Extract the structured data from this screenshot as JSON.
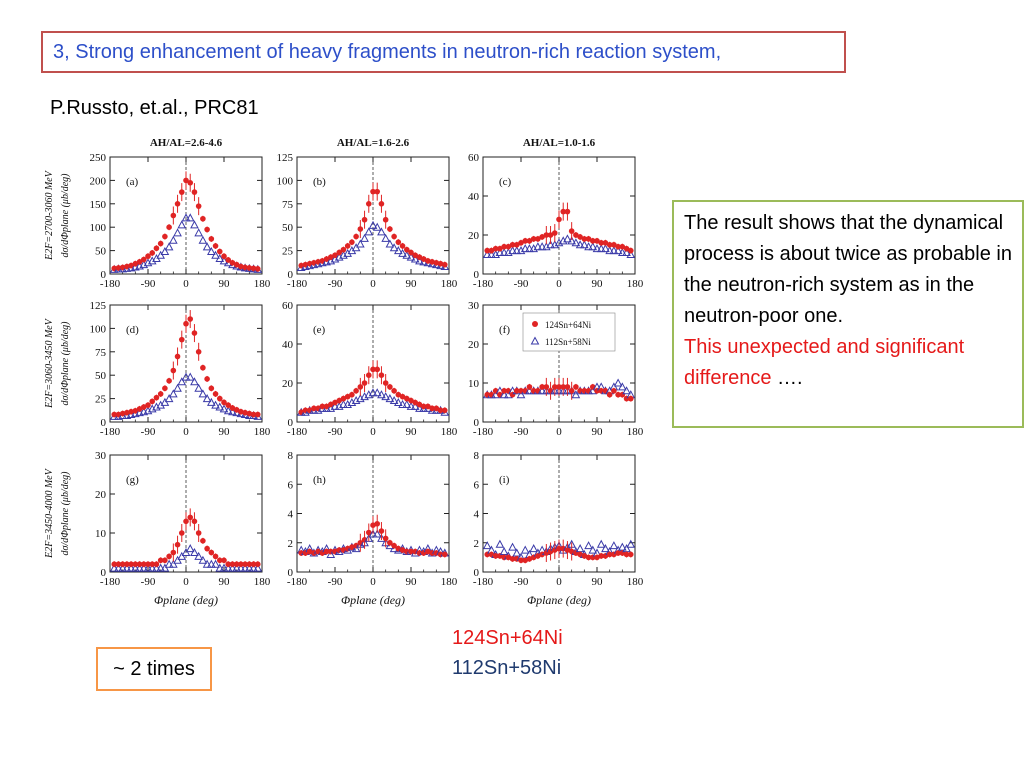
{
  "slide": {
    "title": "3, Strong enhancement of heavy fragments in neutron-rich reaction system,",
    "citation": "P.Russto, et.al., PRC81",
    "note_black": "The result shows that the dynamical process is about twice as probable in the neutron-rich system as in the neutron-poor one.",
    "note_red": "This unexpected and significant difference",
    "note_dots": " ….",
    "legend_red": "124Sn+64Ni",
    "legend_blue": "112Sn+58Ni",
    "times_label": "~ 2 times"
  },
  "colors": {
    "red_series": "#e02424",
    "blue_series": "#3a3aa8",
    "title_blue": "#2d4fc9",
    "note_red": "#e51919"
  },
  "chart_data": {
    "type": "scatter",
    "column_titles": [
      "AH/AL=2.6-4.6",
      "AH/AL=1.6-2.6",
      "AH/AL=1.0-1.6"
    ],
    "row_labels": [
      "E2F=2700-3060 MeV",
      "E2F=3060-3450 MeV",
      "E2F=3450-4000 MeV"
    ],
    "ylabel": "dσ/dΦplane (μb/deg)",
    "xlabel": "Φplane (deg)",
    "x_ticks": [
      "-180",
      "-90",
      "0",
      "90",
      "180"
    ],
    "xlim": [
      -180,
      180
    ],
    "legend": {
      "panel": "f",
      "entries": [
        "124Sn+64Ni",
        "112Sn+58Ni"
      ]
    },
    "x": [
      -170,
      -160,
      -150,
      -140,
      -130,
      -120,
      -110,
      -100,
      -90,
      -80,
      -70,
      -60,
      -50,
      -40,
      -30,
      -20,
      -10,
      0,
      10,
      20,
      30,
      40,
      50,
      60,
      70,
      80,
      90,
      100,
      110,
      120,
      130,
      140,
      150,
      160,
      170
    ],
    "panels": [
      {
        "label": "(a)",
        "ylim": [
          0,
          250
        ],
        "yticks": [
          "0",
          "50",
          "100",
          "150",
          "200",
          "250"
        ],
        "red": [
          12,
          13,
          14,
          16,
          18,
          22,
          26,
          31,
          38,
          45,
          55,
          65,
          80,
          100,
          125,
          150,
          175,
          200,
          195,
          175,
          145,
          118,
          95,
          75,
          60,
          48,
          38,
          30,
          24,
          20,
          16,
          14,
          13,
          12,
          11
        ],
        "blue": [
          10,
          11,
          11,
          12,
          13,
          15,
          17,
          20,
          24,
          28,
          33,
          40,
          48,
          58,
          72,
          88,
          105,
          120,
          120,
          105,
          88,
          72,
          58,
          48,
          40,
          33,
          28,
          24,
          20,
          17,
          15,
          13,
          12,
          11,
          10
        ]
      },
      {
        "label": "(b)",
        "ylim": [
          0,
          125
        ],
        "yticks": [
          "0",
          "25",
          "50",
          "75",
          "100",
          "125"
        ],
        "red": [
          9,
          10,
          11,
          12,
          13,
          14,
          16,
          18,
          20,
          23,
          26,
          30,
          34,
          40,
          48,
          58,
          75,
          88,
          88,
          75,
          58,
          48,
          40,
          34,
          30,
          26,
          23,
          20,
          18,
          16,
          14,
          13,
          12,
          11,
          10
        ],
        "blue": [
          7,
          8,
          9,
          10,
          11,
          12,
          13,
          14,
          16,
          18,
          20,
          22,
          25,
          28,
          32,
          38,
          45,
          52,
          50,
          45,
          38,
          32,
          28,
          25,
          22,
          20,
          18,
          16,
          14,
          13,
          12,
          11,
          10,
          9,
          8
        ]
      },
      {
        "label": "(c)",
        "ylim": [
          0,
          60
        ],
        "yticks": [
          "0",
          "20",
          "40",
          "60"
        ],
        "red": [
          12,
          12,
          13,
          13,
          14,
          14,
          15,
          15,
          16,
          17,
          17,
          18,
          18,
          19,
          20,
          20,
          21,
          28,
          32,
          32,
          22,
          20,
          19,
          18,
          18,
          17,
          17,
          16,
          16,
          15,
          15,
          14,
          14,
          13,
          12
        ],
        "blue": [
          10,
          10,
          10,
          11,
          11,
          11,
          12,
          12,
          12,
          13,
          13,
          13,
          14,
          14,
          14,
          15,
          15,
          16,
          17,
          18,
          17,
          16,
          15,
          15,
          14,
          14,
          13,
          13,
          13,
          12,
          12,
          12,
          11,
          11,
          10
        ]
      },
      {
        "label": "(d)",
        "ylim": [
          0,
          125
        ],
        "yticks": [
          "0",
          "25",
          "50",
          "75",
          "100",
          "125"
        ],
        "red": [
          8,
          8,
          9,
          10,
          11,
          12,
          14,
          16,
          18,
          22,
          26,
          30,
          36,
          44,
          55,
          70,
          88,
          105,
          110,
          95,
          75,
          58,
          46,
          36,
          30,
          25,
          21,
          18,
          15,
          13,
          11,
          10,
          9,
          8,
          8
        ],
        "blue": [
          6,
          6,
          7,
          7,
          8,
          9,
          10,
          11,
          12,
          14,
          16,
          18,
          21,
          25,
          30,
          36,
          43,
          48,
          48,
          43,
          36,
          30,
          25,
          21,
          18,
          16,
          14,
          12,
          11,
          10,
          9,
          8,
          7,
          7,
          6
        ]
      },
      {
        "label": "(e)",
        "ylim": [
          0,
          60
        ],
        "yticks": [
          "0",
          "20",
          "40",
          "60"
        ],
        "red": [
          5,
          6,
          6,
          7,
          7,
          8,
          8,
          9,
          10,
          11,
          12,
          13,
          14,
          16,
          18,
          20,
          24,
          27,
          27,
          24,
          20,
          18,
          16,
          14,
          13,
          12,
          11,
          10,
          9,
          8,
          8,
          7,
          7,
          6,
          6
        ],
        "blue": [
          5,
          5,
          6,
          6,
          6,
          7,
          7,
          7,
          8,
          8,
          9,
          9,
          10,
          11,
          12,
          13,
          14,
          15,
          15,
          14,
          13,
          12,
          11,
          10,
          9,
          9,
          8,
          8,
          7,
          7,
          7,
          6,
          6,
          6,
          5
        ]
      },
      {
        "label": "(f)",
        "ylim": [
          0,
          30
        ],
        "yticks": [
          "0",
          "10",
          "20",
          "30"
        ],
        "red": [
          7,
          7,
          8,
          7,
          8,
          8,
          7,
          8,
          8,
          8,
          9,
          8,
          8,
          9,
          9,
          8,
          9,
          9,
          9,
          9,
          8,
          9,
          8,
          8,
          8,
          9,
          8,
          8,
          8,
          7,
          8,
          7,
          7,
          6,
          6
        ],
        "blue": [
          7,
          7,
          7,
          8,
          7,
          7,
          8,
          8,
          7,
          8,
          8,
          8,
          8,
          8,
          8,
          8,
          8,
          8,
          8,
          8,
          8,
          7,
          8,
          8,
          8,
          8,
          9,
          9,
          8,
          8,
          9,
          10,
          9,
          8,
          7
        ]
      },
      {
        "label": "(g)",
        "ylim": [
          0,
          30
        ],
        "yticks": [
          "0",
          "10",
          "20",
          "30"
        ],
        "red": [
          2,
          2,
          2,
          2,
          2,
          2,
          2,
          2,
          2,
          2,
          2,
          3,
          3,
          4,
          5,
          7,
          10,
          13,
          14,
          13,
          10,
          8,
          6,
          5,
          4,
          3,
          3,
          2,
          2,
          2,
          2,
          2,
          2,
          2,
          2
        ],
        "blue": [
          1,
          1,
          1,
          1,
          1,
          1,
          1,
          1,
          1,
          1,
          1,
          1,
          1,
          2,
          2,
          3,
          4,
          5,
          6,
          5,
          4,
          3,
          2,
          2,
          2,
          1,
          1,
          1,
          1,
          1,
          1,
          1,
          1,
          1,
          1
        ]
      },
      {
        "label": "(h)",
        "ylim": [
          0,
          8
        ],
        "yticks": [
          "0",
          "2",
          "4",
          "6",
          "8"
        ],
        "red": [
          1.3,
          1.3,
          1.4,
          1.3,
          1.4,
          1.3,
          1.4,
          1.4,
          1.4,
          1.5,
          1.5,
          1.6,
          1.7,
          1.8,
          2,
          2.2,
          2.7,
          3.2,
          3.3,
          2.8,
          2.3,
          2,
          1.8,
          1.6,
          1.5,
          1.4,
          1.4,
          1.4,
          1.3,
          1.3,
          1.4,
          1.3,
          1.3,
          1.2,
          1.2
        ],
        "blue": [
          1.5,
          1.4,
          1.6,
          1.3,
          1.5,
          1.4,
          1.6,
          1.2,
          1.5,
          1.4,
          1.6,
          1.5,
          1.7,
          1.6,
          1.9,
          2,
          2.3,
          2.6,
          2.6,
          2.3,
          2,
          1.8,
          1.6,
          1.5,
          1.6,
          1.4,
          1.5,
          1.3,
          1.5,
          1.4,
          1.6,
          1.3,
          1.5,
          1.4,
          1.3
        ]
      },
      {
        "label": "(i)",
        "ylim": [
          0,
          8
        ],
        "yticks": [
          "0",
          "2",
          "4",
          "6",
          "8"
        ],
        "red": [
          1.2,
          1.2,
          1.1,
          1.1,
          1,
          1,
          0.9,
          0.9,
          0.8,
          0.8,
          0.9,
          1,
          1.1,
          1.2,
          1.3,
          1.4,
          1.5,
          1.6,
          1.6,
          1.5,
          1.4,
          1.3,
          1.2,
          1.1,
          1,
          1,
          1,
          1.1,
          1.1,
          1.2,
          1.2,
          1.3,
          1.3,
          1.2,
          1.2
        ],
        "blue": [
          1.8,
          1.5,
          1.2,
          1.9,
          1.4,
          1.1,
          1.7,
          1.3,
          1,
          1.5,
          1.2,
          1.6,
          1.3,
          1.5,
          1.4,
          1.6,
          1.7,
          1.8,
          1.5,
          1.7,
          1.9,
          1.4,
          1.6,
          1.2,
          1.8,
          1.5,
          1.3,
          1.9,
          1.6,
          1.4,
          1.8,
          1.5,
          1.7,
          1.6,
          1.9
        ]
      }
    ]
  }
}
